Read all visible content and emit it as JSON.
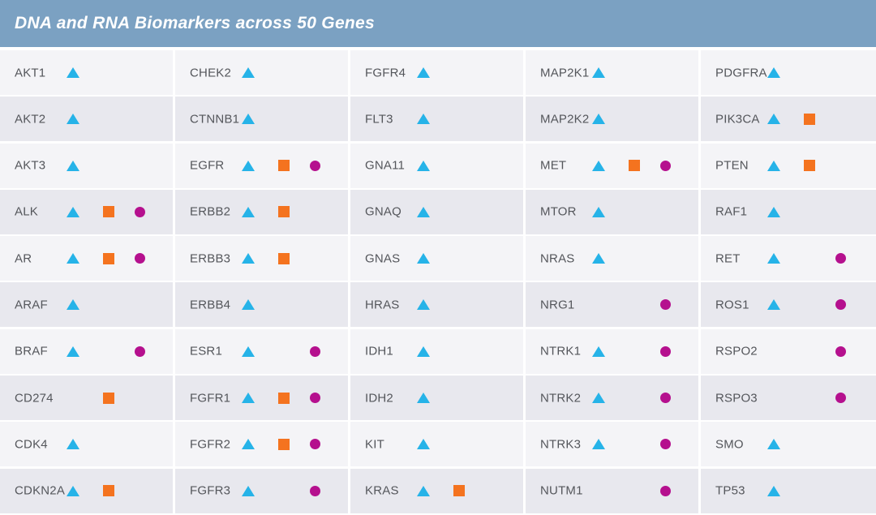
{
  "header": {
    "title": "DNA and RNA Biomarkers across 50 Genes",
    "bg_color": "#7ba1c2",
    "text_color": "#ffffff"
  },
  "chart_data": {
    "type": "table",
    "title": "DNA and RNA Biomarkers across 50 Genes",
    "gene_count": 50,
    "layout": {
      "columns": 5,
      "rows_per_column": 10,
      "marker_slot_order": [
        "triangle",
        "square",
        "circle"
      ]
    },
    "marker_types": [
      {
        "id": "triangle",
        "icon_name": "triangle-icon",
        "color": "#26b3e8"
      },
      {
        "id": "square",
        "icon_name": "square-icon",
        "color": "#f4731f"
      },
      {
        "id": "circle",
        "icon_name": "circle-icon",
        "color": "#b5108e"
      }
    ],
    "row_colors": {
      "odd": "#f4f4f7",
      "even": "#e8e8ee"
    },
    "columns": [
      {
        "genes": [
          {
            "name": "AKT1",
            "markers": [
              "triangle"
            ]
          },
          {
            "name": "AKT2",
            "markers": [
              "triangle"
            ]
          },
          {
            "name": "AKT3",
            "markers": [
              "triangle"
            ]
          },
          {
            "name": "ALK",
            "markers": [
              "triangle",
              "square",
              "circle"
            ]
          },
          {
            "name": "AR",
            "markers": [
              "triangle",
              "square",
              "circle"
            ]
          },
          {
            "name": "ARAF",
            "markers": [
              "triangle"
            ]
          },
          {
            "name": "BRAF",
            "markers": [
              "triangle",
              "circle"
            ]
          },
          {
            "name": "CD274",
            "markers": [
              "square"
            ]
          },
          {
            "name": "CDK4",
            "markers": [
              "triangle"
            ]
          },
          {
            "name": "CDKN2A",
            "markers": [
              "triangle",
              "square"
            ]
          }
        ]
      },
      {
        "genes": [
          {
            "name": "CHEK2",
            "markers": [
              "triangle"
            ]
          },
          {
            "name": "CTNNB1",
            "markers": [
              "triangle"
            ]
          },
          {
            "name": "EGFR",
            "markers": [
              "triangle",
              "square",
              "circle"
            ]
          },
          {
            "name": "ERBB2",
            "markers": [
              "triangle",
              "square"
            ]
          },
          {
            "name": "ERBB3",
            "markers": [
              "triangle",
              "square"
            ]
          },
          {
            "name": "ERBB4",
            "markers": [
              "triangle"
            ]
          },
          {
            "name": "ESR1",
            "markers": [
              "triangle",
              "circle"
            ]
          },
          {
            "name": "FGFR1",
            "markers": [
              "triangle",
              "square",
              "circle"
            ]
          },
          {
            "name": "FGFR2",
            "markers": [
              "triangle",
              "square",
              "circle"
            ]
          },
          {
            "name": "FGFR3",
            "markers": [
              "triangle",
              "circle"
            ]
          }
        ]
      },
      {
        "genes": [
          {
            "name": "FGFR4",
            "markers": [
              "triangle"
            ]
          },
          {
            "name": "FLT3",
            "markers": [
              "triangle"
            ]
          },
          {
            "name": "GNA11",
            "markers": [
              "triangle"
            ]
          },
          {
            "name": "GNAQ",
            "markers": [
              "triangle"
            ]
          },
          {
            "name": "GNAS",
            "markers": [
              "triangle"
            ]
          },
          {
            "name": "HRAS",
            "markers": [
              "triangle"
            ]
          },
          {
            "name": "IDH1",
            "markers": [
              "triangle"
            ]
          },
          {
            "name": "IDH2",
            "markers": [
              "triangle"
            ]
          },
          {
            "name": "KIT",
            "markers": [
              "triangle"
            ]
          },
          {
            "name": "KRAS",
            "markers": [
              "triangle",
              "square"
            ]
          }
        ]
      },
      {
        "genes": [
          {
            "name": "MAP2K1",
            "markers": [
              "triangle"
            ]
          },
          {
            "name": "MAP2K2",
            "markers": [
              "triangle"
            ]
          },
          {
            "name": "MET",
            "markers": [
              "triangle",
              "square",
              "circle"
            ]
          },
          {
            "name": "MTOR",
            "markers": [
              "triangle"
            ]
          },
          {
            "name": "NRAS",
            "markers": [
              "triangle"
            ]
          },
          {
            "name": "NRG1",
            "markers": [
              "circle"
            ]
          },
          {
            "name": "NTRK1",
            "markers": [
              "triangle",
              "circle"
            ]
          },
          {
            "name": "NTRK2",
            "markers": [
              "triangle",
              "circle"
            ]
          },
          {
            "name": "NTRK3",
            "markers": [
              "triangle",
              "circle"
            ]
          },
          {
            "name": "NUTM1",
            "markers": [
              "circle"
            ]
          }
        ]
      },
      {
        "genes": [
          {
            "name": "PDGFRA",
            "markers": [
              "triangle"
            ]
          },
          {
            "name": "PIK3CA",
            "markers": [
              "triangle",
              "square"
            ]
          },
          {
            "name": "PTEN",
            "markers": [
              "triangle",
              "square"
            ]
          },
          {
            "name": "RAF1",
            "markers": [
              "triangle"
            ]
          },
          {
            "name": "RET",
            "markers": [
              "triangle",
              "circle"
            ]
          },
          {
            "name": "ROS1",
            "markers": [
              "triangle",
              "circle"
            ]
          },
          {
            "name": "RSPO2",
            "markers": [
              "circle"
            ]
          },
          {
            "name": "RSPO3",
            "markers": [
              "circle"
            ]
          },
          {
            "name": "SMO",
            "markers": [
              "triangle"
            ]
          },
          {
            "name": "TP53",
            "markers": [
              "triangle"
            ]
          }
        ]
      }
    ]
  }
}
